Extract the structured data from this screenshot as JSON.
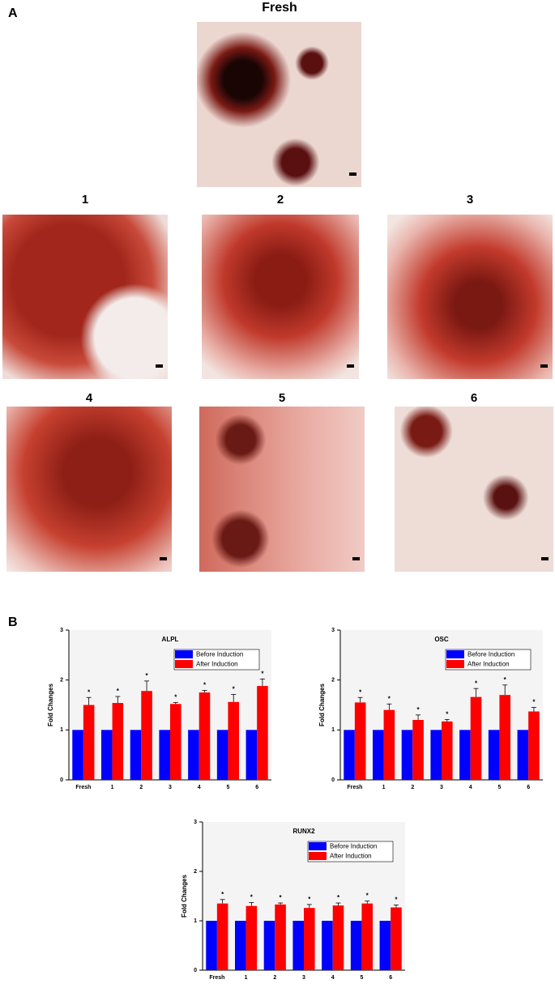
{
  "panel_a": {
    "label": "A",
    "images": [
      {
        "title": "Fresh"
      },
      {
        "title": "1"
      },
      {
        "title": "2"
      },
      {
        "title": "3"
      },
      {
        "title": "4"
      },
      {
        "title": "5"
      },
      {
        "title": "6"
      }
    ]
  },
  "panel_b": {
    "label": "B"
  },
  "chart_data": [
    {
      "type": "bar",
      "title": "ALPL",
      "y_label": "Fold Changes",
      "categories": [
        "Fresh",
        "1",
        "2",
        "3",
        "4",
        "5",
        "6"
      ],
      "series": [
        {
          "name": "Before Induction",
          "color": "#0000ff",
          "values": [
            1,
            1,
            1,
            1,
            1,
            1,
            1
          ]
        },
        {
          "name": "After Induction",
          "color": "#ff0000",
          "values": [
            1.5,
            1.54,
            1.78,
            1.52,
            1.75,
            1.56,
            1.88
          ],
          "errors": [
            0.15,
            0.13,
            0.2,
            0.03,
            0.04,
            0.15,
            0.14
          ],
          "significance": [
            "*",
            "*",
            "*",
            "*",
            "*",
            "*",
            "*"
          ]
        }
      ],
      "ylim": [
        0,
        3
      ],
      "yticks": [
        0,
        1,
        2,
        3
      ],
      "legend": "upper right"
    },
    {
      "type": "bar",
      "title": "OSC",
      "y_label": "Fold Changes",
      "categories": [
        "Fresh",
        "1",
        "2",
        "3",
        "4",
        "5",
        "6"
      ],
      "series": [
        {
          "name": "Before Induction",
          "color": "#0000ff",
          "values": [
            1,
            1,
            1,
            1,
            1,
            1,
            1
          ]
        },
        {
          "name": "After Induction",
          "color": "#ff0000",
          "values": [
            1.55,
            1.4,
            1.2,
            1.17,
            1.66,
            1.7,
            1.37
          ],
          "errors": [
            0.1,
            0.12,
            0.1,
            0.04,
            0.17,
            0.2,
            0.08
          ],
          "significance": [
            "*",
            "*",
            "*",
            "*",
            "*",
            "*",
            "*"
          ]
        }
      ],
      "ylim": [
        0,
        3
      ],
      "yticks": [
        0,
        1,
        2,
        3
      ],
      "legend": "upper right"
    },
    {
      "type": "bar",
      "title": "RUNX2",
      "y_label": "Fold Changes",
      "categories": [
        "Fresh",
        "1",
        "2",
        "3",
        "4",
        "5",
        "6"
      ],
      "series": [
        {
          "name": "Before Induction",
          "color": "#0000ff",
          "values": [
            1,
            1,
            1,
            1,
            1,
            1,
            1
          ]
        },
        {
          "name": "After Induction",
          "color": "#ff0000",
          "values": [
            1.35,
            1.3,
            1.33,
            1.26,
            1.31,
            1.35,
            1.27
          ],
          "errors": [
            0.08,
            0.07,
            0.03,
            0.07,
            0.05,
            0.05,
            0.05
          ],
          "significance": [
            "*",
            "*",
            "*",
            "*",
            "*",
            "*",
            "*"
          ]
        }
      ],
      "ylim": [
        0,
        3
      ],
      "yticks": [
        0,
        1,
        2,
        3
      ],
      "legend": "upper right"
    }
  ]
}
